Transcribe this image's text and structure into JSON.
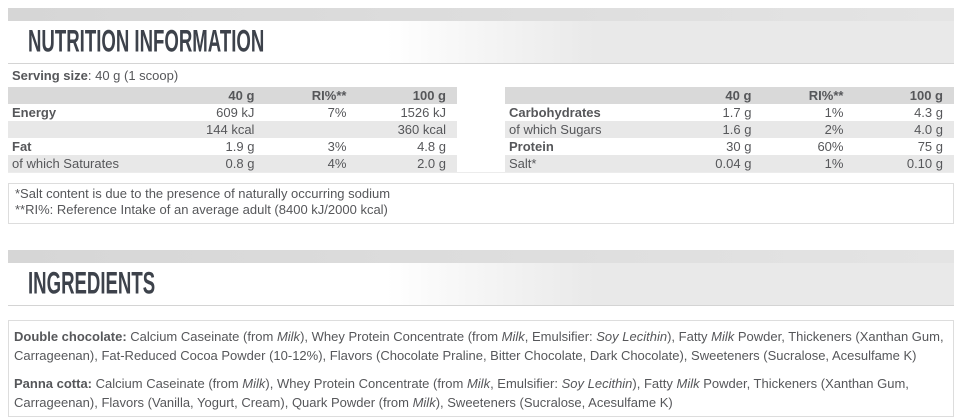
{
  "colors": {
    "title_text": "#3d424b",
    "body_text": "#56575a",
    "header_row_bg": "#d9d9d9",
    "stripe_row_bg": "#e8e8e8",
    "band_strip_bg": "#d6d6d6",
    "box_border": "#dddddd"
  },
  "nutrition": {
    "title": "NUTRITION INFORMATION",
    "serving_label": "Serving size",
    "serving_rest": ": 40 g (1 scoop)",
    "columns": [
      "40 g",
      "RI%**",
      "100 g"
    ],
    "left_rows": [
      {
        "label": "Energy",
        "bold": true,
        "values": [
          "609 kJ",
          "7%",
          "1526 kJ"
        ]
      },
      {
        "label": "",
        "bold": false,
        "values": [
          "144 kcal",
          "",
          "360 kcal"
        ]
      },
      {
        "label": "Fat",
        "bold": true,
        "values": [
          "1.9 g",
          "3%",
          "4.8 g"
        ]
      },
      {
        "label": "of which Saturates",
        "bold": false,
        "values": [
          "0.8 g",
          "4%",
          "2.0 g"
        ]
      }
    ],
    "right_rows": [
      {
        "label": "Carbohydrates",
        "bold": true,
        "values": [
          "1.7 g",
          "1%",
          "4.3 g"
        ]
      },
      {
        "label": "of which Sugars",
        "bold": false,
        "values": [
          "1.6 g",
          "2%",
          "4.0 g"
        ]
      },
      {
        "label": "Protein",
        "bold": true,
        "values": [
          "30 g",
          "60%",
          "75 g"
        ]
      },
      {
        "label": "Salt*",
        "bold": false,
        "values": [
          "0.04 g",
          "1%",
          "0.10 g"
        ]
      }
    ],
    "footnotes": [
      "*Salt content is due to the presence of naturally occurring sodium",
      "**RI%: Reference Intake of an average adult (8400 kJ/2000 kcal)"
    ]
  },
  "ingredients": {
    "title": "INGREDIENTS",
    "paragraphs": [
      {
        "segments": [
          {
            "t": "Double chocolate: ",
            "b": true
          },
          {
            "t": "Calcium Caseinate (from "
          },
          {
            "t": "Milk",
            "i": true
          },
          {
            "t": "), Whey Protein Concentrate (from "
          },
          {
            "t": "Milk",
            "i": true
          },
          {
            "t": ", Emulsifier: "
          },
          {
            "t": "Soy Lecithin",
            "i": true
          },
          {
            "t": "), Fatty "
          },
          {
            "t": "Milk",
            "i": true
          },
          {
            "t": " Powder, Thickeners (Xanthan Gum, Carrageenan), Fat-Reduced Cocoa Powder (10-12%), Flavors (Chocolate Praline, Bitter Chocolate, Dark Chocolate), Sweeteners (Sucralose, Acesulfame K)"
          }
        ]
      },
      {
        "segments": [
          {
            "t": "Panna cotta: ",
            "b": true
          },
          {
            "t": "Calcium Caseinate (from "
          },
          {
            "t": "Milk",
            "i": true
          },
          {
            "t": "), Whey Protein Concentrate (from "
          },
          {
            "t": "Milk",
            "i": true
          },
          {
            "t": ", Emulsifier: "
          },
          {
            "t": "Soy Lecithin",
            "i": true
          },
          {
            "t": "), Fatty "
          },
          {
            "t": "Milk",
            "i": true
          },
          {
            "t": " Powder, Thickeners (Xanthan Gum, Carrageenan), Flavors (Vanilla, Yogurt, Cream), Quark Powder (from "
          },
          {
            "t": "Milk",
            "i": true
          },
          {
            "t": "), Sweeteners (Sucralose, Acesulfame K)"
          }
        ]
      }
    ]
  }
}
